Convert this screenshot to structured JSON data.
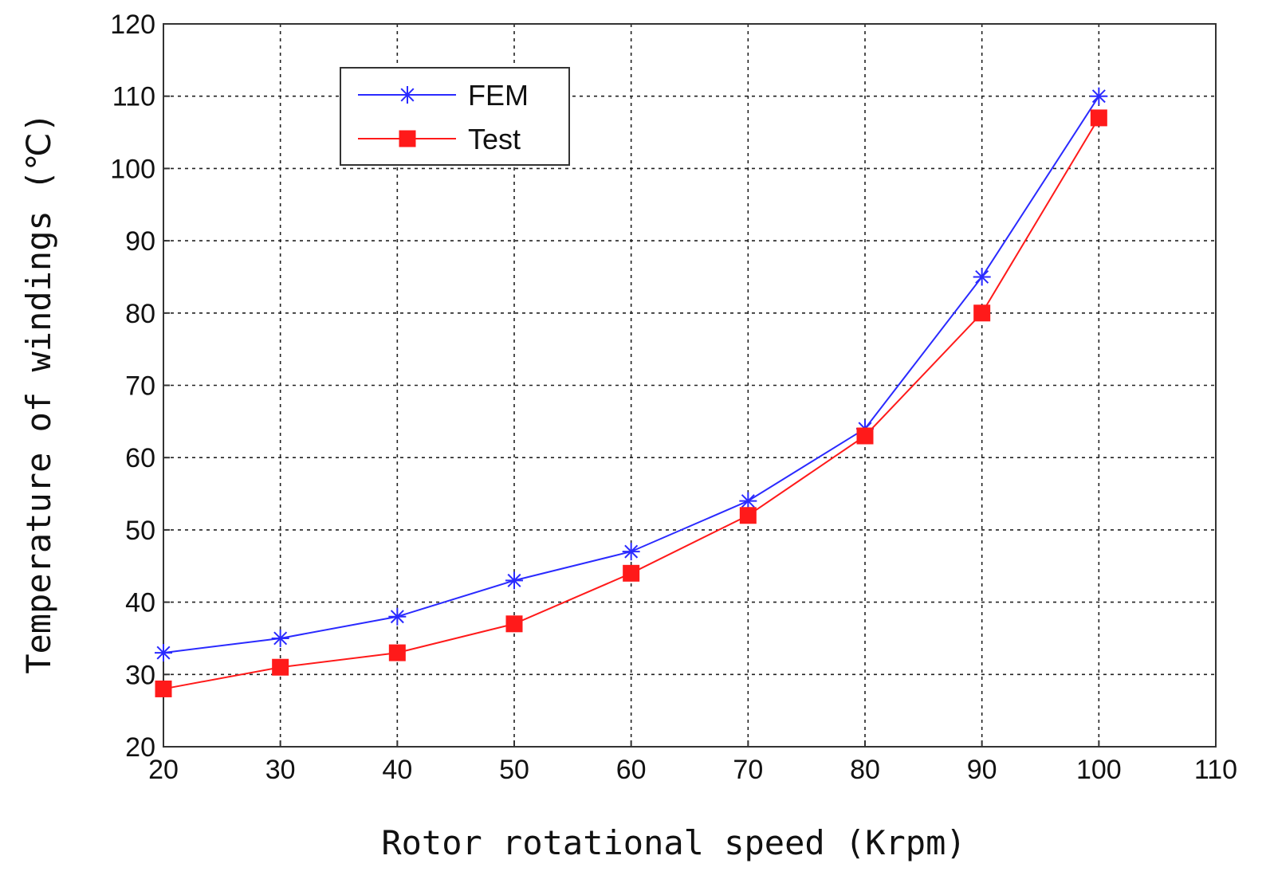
{
  "chart_data": {
    "type": "line",
    "title": "",
    "xlabel": "Rotor rotational speed (Krpm)",
    "ylabel": "Temperature of windings (℃)",
    "xlim": [
      20,
      110
    ],
    "ylim": [
      20,
      120
    ],
    "x_ticks": [
      20,
      30,
      40,
      50,
      60,
      70,
      80,
      90,
      100,
      110
    ],
    "y_ticks": [
      20,
      30,
      40,
      50,
      60,
      70,
      80,
      90,
      100,
      110,
      120
    ],
    "grid": true,
    "grid_style": "dotted",
    "legend_position": "top-left",
    "x": [
      20,
      30,
      40,
      50,
      60,
      70,
      80,
      90,
      100
    ],
    "series": [
      {
        "name": "FEM",
        "color": "#2a2aff",
        "marker": "asterisk",
        "values": [
          33,
          35,
          38,
          43,
          47,
          54,
          64,
          85,
          110
        ]
      },
      {
        "name": "Test",
        "color": "#ff1a1a",
        "marker": "square",
        "values": [
          28,
          31,
          33,
          37,
          44,
          52,
          63,
          80,
          107
        ]
      }
    ]
  }
}
